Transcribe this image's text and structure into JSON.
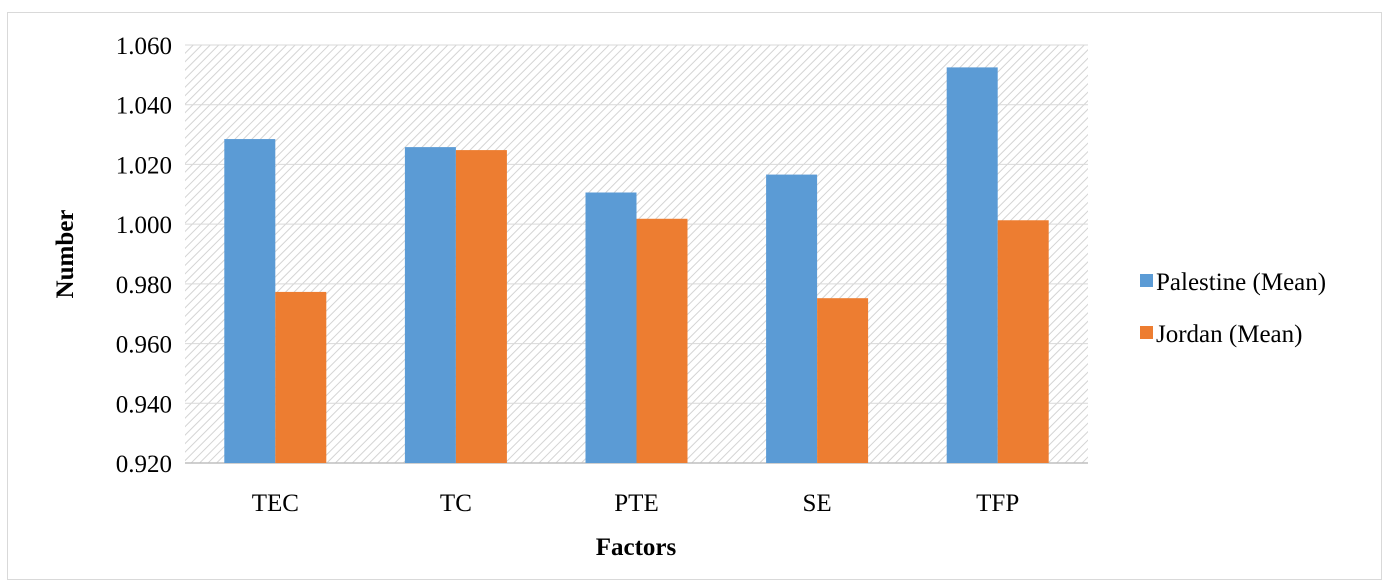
{
  "chart_data": {
    "type": "bar",
    "categories": [
      "TEC",
      "TC",
      "PTE",
      "SE",
      "TFP"
    ],
    "series": [
      {
        "name": "Palestine (Mean)",
        "values": [
          1.0285,
          1.0258,
          1.0106,
          1.0166,
          1.0525
        ],
        "color": "#5b9bd5"
      },
      {
        "name": "Jordan (Mean)",
        "values": [
          0.9773,
          1.0248,
          1.0018,
          0.9752,
          1.0013
        ],
        "color": "#ed7d31"
      }
    ],
    "title": "",
    "xlabel": "Factors",
    "ylabel": "Number",
    "ylim": [
      0.92,
      1.06
    ],
    "yticks": [
      "0.920",
      "0.940",
      "0.960",
      "0.980",
      "1.000",
      "1.020",
      "1.040",
      "1.060"
    ],
    "grid": true,
    "plot_background": "diagonal-hatch",
    "legend": "right"
  }
}
